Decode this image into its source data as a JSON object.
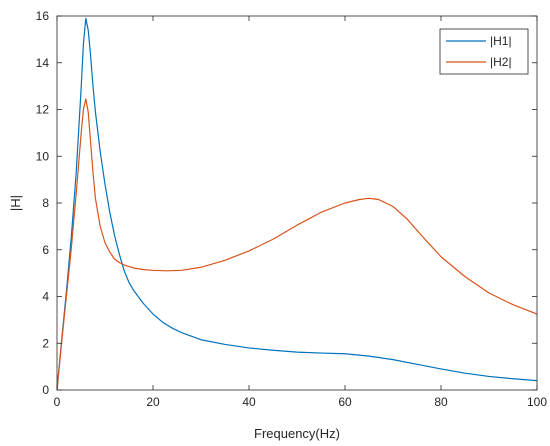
{
  "chart_data": {
    "type": "line",
    "xlabel": "Frequency(Hz)",
    "ylabel": "|H|",
    "xlim": [
      0,
      100
    ],
    "ylim": [
      0,
      16
    ],
    "xticks": [
      0,
      20,
      40,
      60,
      80,
      100
    ],
    "yticks": [
      0,
      2,
      4,
      6,
      8,
      10,
      12,
      14,
      16
    ],
    "grid": false,
    "legend_position": "top-right",
    "series": [
      {
        "name": "|H1|",
        "color": "#0072BD",
        "x": [
          0,
          1,
          2,
          3,
          4,
          5,
          5.5,
          6,
          6.5,
          7,
          7.5,
          8,
          9,
          10,
          11,
          12,
          13,
          14,
          15,
          16,
          18,
          20,
          22,
          24,
          26,
          28,
          30,
          35,
          40,
          45,
          50,
          55,
          60,
          65,
          70,
          75,
          80,
          85,
          90,
          95,
          100
        ],
        "values": [
          0,
          2.2,
          4.3,
          6.6,
          9.3,
          12.8,
          14.8,
          15.9,
          15.4,
          14.3,
          13.0,
          11.9,
          10.2,
          8.8,
          7.6,
          6.6,
          5.8,
          5.1,
          4.6,
          4.25,
          3.7,
          3.25,
          2.9,
          2.65,
          2.45,
          2.3,
          2.15,
          1.95,
          1.8,
          1.7,
          1.62,
          1.58,
          1.55,
          1.45,
          1.3,
          1.1,
          0.9,
          0.72,
          0.58,
          0.48,
          0.4
        ]
      },
      {
        "name": "|H2|",
        "color": "#D95319",
        "x": [
          0,
          1,
          2,
          3,
          4,
          5,
          5.5,
          6,
          6.5,
          7,
          7.5,
          8,
          9,
          10,
          11,
          12,
          13,
          14,
          15,
          16,
          18,
          20,
          23,
          26,
          30,
          35,
          40,
          45,
          50,
          55,
          60,
          63,
          65,
          67,
          70,
          73,
          76,
          80,
          85,
          90,
          95,
          100
        ],
        "values": [
          0,
          2.1,
          4.1,
          6.1,
          8.4,
          10.9,
          12.0,
          12.45,
          11.9,
          10.6,
          9.3,
          8.2,
          7.0,
          6.3,
          5.9,
          5.6,
          5.45,
          5.35,
          5.28,
          5.22,
          5.15,
          5.12,
          5.1,
          5.12,
          5.25,
          5.55,
          5.95,
          6.45,
          7.05,
          7.6,
          8.0,
          8.15,
          8.2,
          8.15,
          7.85,
          7.3,
          6.6,
          5.7,
          4.85,
          4.15,
          3.65,
          3.25
        ]
      }
    ]
  }
}
